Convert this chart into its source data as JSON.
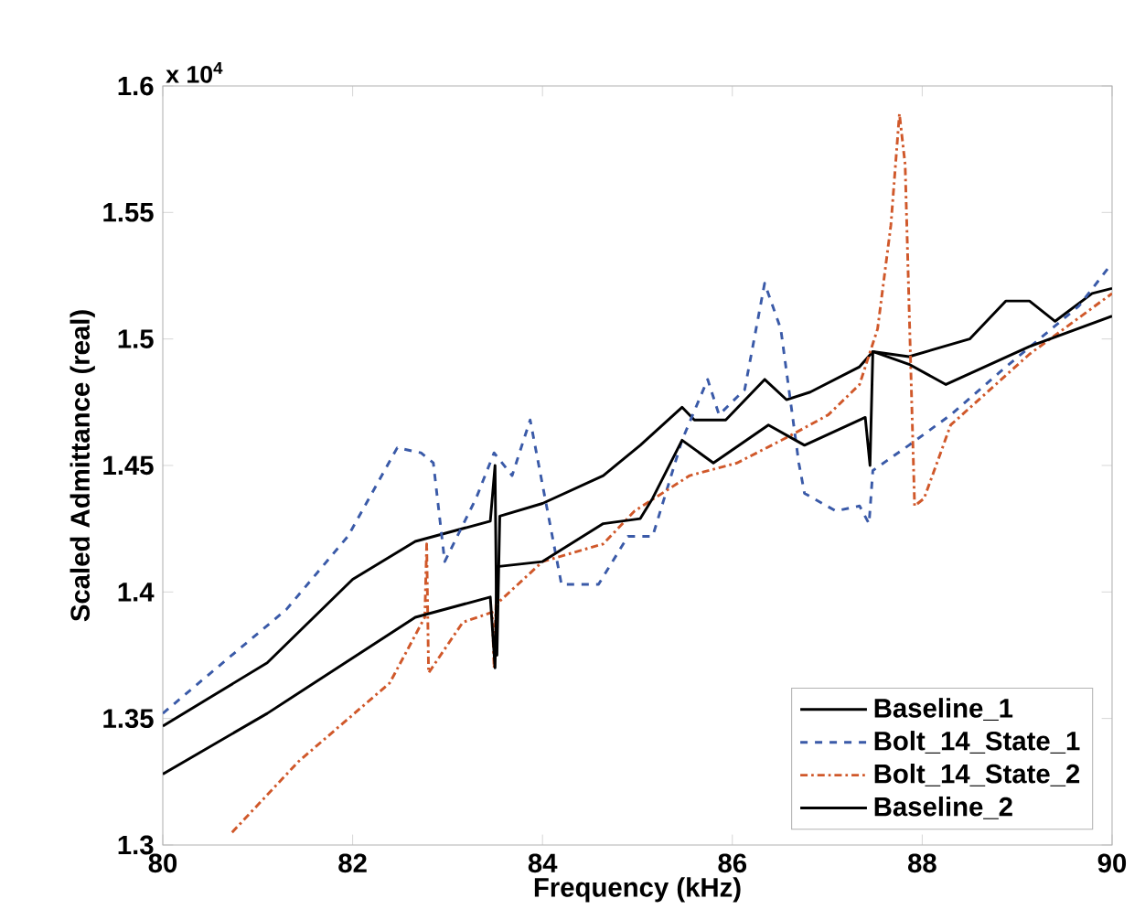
{
  "chart_data": {
    "type": "line",
    "xlabel": "Frequency (kHz)",
    "ylabel": "Scaled Admittance (real)",
    "annotations": [
      "x 10$^{4}$"
    ],
    "xlim": [
      80,
      90
    ],
    "xticks": [
      80,
      82,
      84,
      86,
      88,
      90
    ],
    "ylim": [
      1.3,
      1.6
    ],
    "yticks": [
      1.3,
      1.35,
      1.4,
      1.45,
      1.5,
      1.55,
      1.6
    ],
    "legend": "bottom right",
    "grid": false,
    "series": [
      {
        "name": "Baseline_1",
        "color": "#000000",
        "line_style": "solid",
        "x": [
          80,
          81.1,
          82.0,
          82.66,
          83.45,
          83.5,
          83.52,
          83.55,
          84.0,
          84.64,
          85.03,
          85.47,
          85.6,
          85.93,
          86.34,
          86.57,
          86.82,
          87.34,
          87.48,
          87.86,
          88.5,
          88.88,
          89.13,
          89.4,
          89.79,
          90
        ],
        "values": [
          1.347,
          1.372,
          1.405,
          1.42,
          1.428,
          1.45,
          1.375,
          1.43,
          1.435,
          1.446,
          1.458,
          1.473,
          1.468,
          1.468,
          1.484,
          1.476,
          1.479,
          1.489,
          1.495,
          1.493,
          1.5,
          1.515,
          1.515,
          1.507,
          1.518,
          1.52
        ]
      },
      {
        "name": "Bolt_14_State_1",
        "color": "#3a5aa8",
        "line_style": "dashed",
        "x": [
          80,
          80.6,
          81.3,
          81.95,
          82.47,
          82.72,
          82.85,
          82.97,
          83.3,
          83.49,
          83.68,
          83.87,
          84.2,
          84.59,
          84.9,
          85.16,
          85.47,
          85.74,
          85.86,
          86.13,
          86.34,
          86.51,
          86.7,
          86.76,
          87.09,
          87.34,
          87.44,
          87.48,
          87.86,
          88.3,
          88.82,
          89.65,
          90
        ],
        "values": [
          1.352,
          1.371,
          1.393,
          1.422,
          1.457,
          1.455,
          1.451,
          1.412,
          1.437,
          1.455,
          1.446,
          1.468,
          1.403,
          1.403,
          1.422,
          1.422,
          1.46,
          1.484,
          1.47,
          1.48,
          1.522,
          1.504,
          1.451,
          1.439,
          1.432,
          1.434,
          1.427,
          1.448,
          1.458,
          1.47,
          1.487,
          1.513,
          1.53
        ]
      },
      {
        "name": "Bolt_14_State_2",
        "color": "#d0582a",
        "line_style": "dotted",
        "x": [
          80.73,
          81.43,
          82.39,
          82.76,
          82.78,
          82.8,
          83.16,
          83.47,
          83.49,
          83.51,
          84.0,
          84.64,
          84.97,
          85.55,
          86.05,
          86.57,
          87.01,
          87.34,
          87.53,
          87.67,
          87.76,
          87.82,
          87.92,
          88.02,
          88.3,
          89.13,
          90
        ],
        "values": [
          1.305,
          1.333,
          1.364,
          1.39,
          1.419,
          1.368,
          1.388,
          1.392,
          1.37,
          1.395,
          1.412,
          1.419,
          1.432,
          1.446,
          1.451,
          1.461,
          1.47,
          1.482,
          1.504,
          1.545,
          1.589,
          1.569,
          1.434,
          1.437,
          1.466,
          1.494,
          1.518
        ]
      },
      {
        "name": "Baseline_2",
        "color": "#000000",
        "line_style": "solid",
        "x": [
          80,
          81.1,
          82.66,
          83.45,
          83.5,
          83.52,
          84.0,
          84.64,
          85.03,
          85.16,
          85.47,
          85.8,
          86.38,
          86.76,
          87.4,
          87.45,
          87.48,
          87.86,
          88.25,
          89.13,
          90
        ],
        "values": [
          1.328,
          1.352,
          1.39,
          1.398,
          1.37,
          1.41,
          1.412,
          1.427,
          1.429,
          1.437,
          1.46,
          1.451,
          1.466,
          1.458,
          1.469,
          1.45,
          1.495,
          1.49,
          1.482,
          1.497,
          1.509
        ]
      }
    ]
  }
}
